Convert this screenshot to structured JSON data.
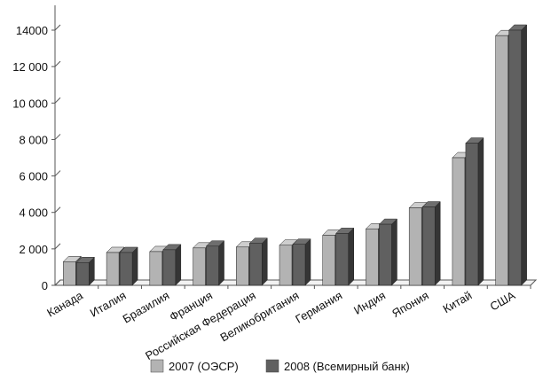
{
  "chart_data": {
    "type": "bar",
    "title": "",
    "xlabel": "",
    "ylabel": "",
    "ylim": [
      0,
      14000
    ],
    "yticks": [
      0,
      2000,
      4000,
      6000,
      8000,
      10000,
      12000,
      14000
    ],
    "ytick_labels": [
      "0",
      "2 000",
      "4 000",
      "6 000",
      "8 000",
      "10 000",
      "12 000",
      "14000"
    ],
    "categories": [
      "Канада",
      "Италия",
      "Бразилия",
      "Франция",
      "Российская Федерация",
      "Великобритания",
      "Германия",
      "Индия",
      "Япония",
      "Китай",
      "США"
    ],
    "series": [
      {
        "name": "2007 (ОЭСР)",
        "color": "#b3b3b3",
        "values": [
          1300,
          1800,
          1850,
          2050,
          2100,
          2200,
          2750,
          3100,
          4250,
          7000,
          13700
        ]
      },
      {
        "name": "2008 (Всемирный банк)",
        "color": "#606060",
        "values": [
          1250,
          1800,
          1950,
          2150,
          2300,
          2250,
          2850,
          3350,
          4300,
          7800,
          14000
        ]
      }
    ],
    "grid": false,
    "legend_position": "bottom-center",
    "style": "3d"
  }
}
